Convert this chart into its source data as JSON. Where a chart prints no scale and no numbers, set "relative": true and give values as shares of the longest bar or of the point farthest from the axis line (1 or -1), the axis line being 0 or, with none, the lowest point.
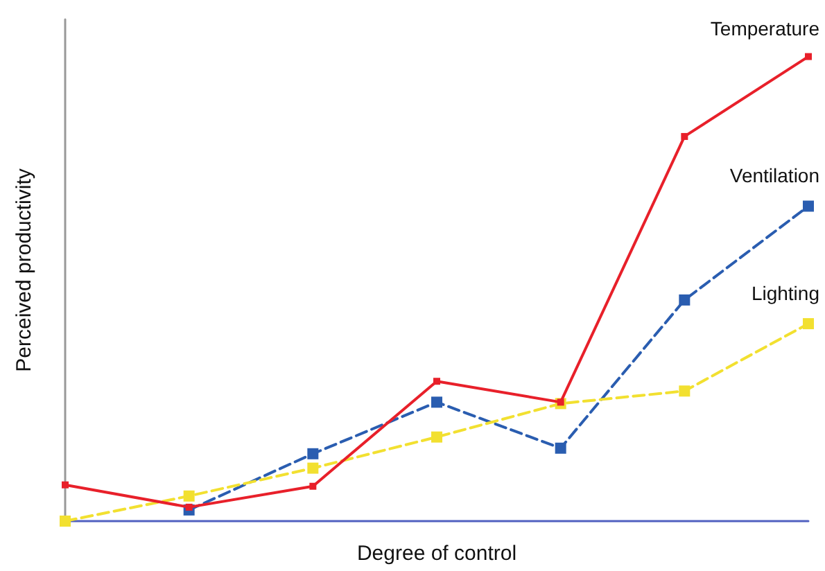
{
  "chart_data": {
    "type": "line",
    "relative": true,
    "xlabel": "Degree of control",
    "ylabel": "Perceived productivity",
    "categories": [
      null,
      null,
      null,
      null,
      null,
      null,
      null
    ],
    "marker": "square",
    "grid": false,
    "legend": false,
    "series": [
      {
        "name": "Temperature",
        "color": "#e8202a",
        "line_style": "solid",
        "values": [
          0.078,
          0.03,
          0.075,
          0.301,
          0.256,
          0.828,
          1
        ]
      },
      {
        "name": "Ventilation",
        "color": "#2a5db0",
        "line_style": "dashed",
        "values": [
          null,
          0.024,
          0.145,
          0.256,
          0.157,
          0.476,
          0.678
        ]
      },
      {
        "name": "Lighting",
        "color": "#f2e030",
        "line_style": "dashed",
        "values": [
          0,
          0.054,
          0.114,
          0.181,
          0.253,
          0.28,
          0.425
        ]
      }
    ]
  }
}
